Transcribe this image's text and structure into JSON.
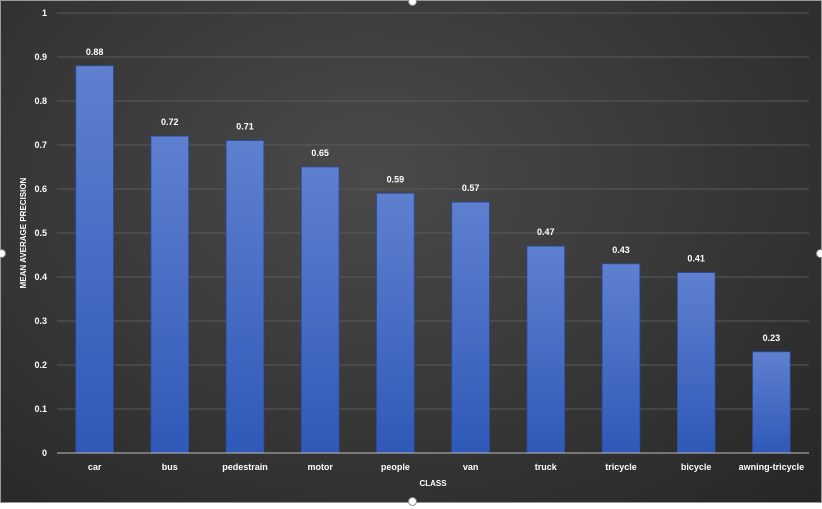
{
  "chart_data": {
    "type": "bar",
    "title": "",
    "xlabel": "CLASS",
    "ylabel": "MEAN AVERAGE PRECISION",
    "categories": [
      "car",
      "bus",
      "pedestrain",
      "motor",
      "people",
      "van",
      "truck",
      "tricycle",
      "bicycle",
      "awning-tricycle"
    ],
    "values": [
      0.88,
      0.72,
      0.71,
      0.65,
      0.59,
      0.57,
      0.47,
      0.43,
      0.41,
      0.23
    ],
    "data_labels": [
      "0.88",
      "0.72",
      "0.71",
      "0.65",
      "0.59",
      "0.57",
      "0.47",
      "0.43",
      "0.41",
      "0.23"
    ],
    "ylim": [
      0,
      1
    ],
    "yticks": [
      "0",
      "0.1",
      "0.2",
      "0.3",
      "0.4",
      "0.5",
      "0.6",
      "0.7",
      "0.8",
      "0.9",
      "1"
    ],
    "grid": true,
    "legend": "none",
    "colors": {
      "bar_top": "#5f80cf",
      "bar_bottom": "#2f59b8",
      "text": "#ffffff",
      "grid": "#5a5a5a",
      "axis": "#bdbdbd"
    }
  }
}
